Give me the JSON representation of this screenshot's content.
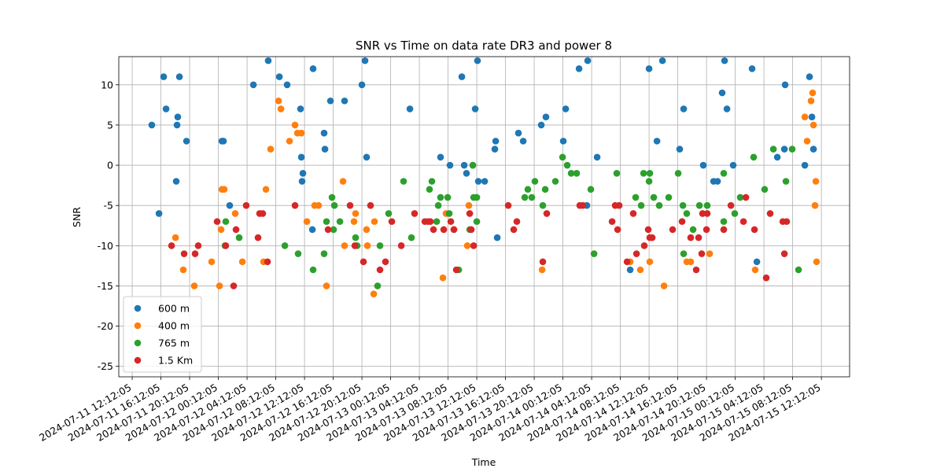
{
  "chart_data": {
    "type": "scatter",
    "title": "SNR vs Time on data rate DR3 and power 8",
    "x_label": "Time",
    "y_label": "SNR",
    "xlim": [
      "2024-07-11 10:20",
      "2024-07-15 16:08"
    ],
    "xticks": [
      "2024-07-11 12:12:05",
      "2024-07-11 16:12:05",
      "2024-07-11 20:12:05",
      "2024-07-12 00:12:05",
      "2024-07-12 04:12:05",
      "2024-07-12 08:12:05",
      "2024-07-12 12:12:05",
      "2024-07-12 16:12:05",
      "2024-07-12 20:12:05",
      "2024-07-13 00:12:05",
      "2024-07-13 04:12:05",
      "2024-07-13 08:12:05",
      "2024-07-13 12:12:05",
      "2024-07-13 16:12:05",
      "2024-07-13 20:12:05",
      "2024-07-14 00:12:05",
      "2024-07-14 04:12:05",
      "2024-07-14 08:12:05",
      "2024-07-14 12:12:05",
      "2024-07-14 16:12:05",
      "2024-07-14 20:12:05",
      "2024-07-15 00:12:05",
      "2024-07-15 04:12:05",
      "2024-07-15 08:12:05",
      "2024-07-15 12:12:05"
    ],
    "ylim": [
      -26.3,
      13.5
    ],
    "yticks": [
      -25,
      -20,
      -15,
      -10,
      -5,
      0,
      5,
      10
    ],
    "grid": true,
    "legend": "lower left",
    "series": [
      {
        "name": "600 m",
        "color": "#1f77b4",
        "x": [
          "2024-07-11 14:56",
          "2024-07-11 15:56",
          "2024-07-11 16:35",
          "2024-07-11 16:55",
          "2024-07-11 18:20",
          "2024-07-11 18:27",
          "2024-07-11 18:33",
          "2024-07-11 18:47",
          "2024-07-11 19:46",
          "2024-07-12 00:42",
          "2024-07-12 00:55",
          "2024-07-12 01:47",
          "2024-07-12 05:05",
          "2024-07-12 07:09",
          "2024-07-12 08:42",
          "2024-07-12 09:47",
          "2024-07-12 11:39",
          "2024-07-12 11:46",
          "2024-07-12 11:52",
          "2024-07-12 11:59",
          "2024-07-12 13:18",
          "2024-07-12 13:24",
          "2024-07-12 14:56",
          "2024-07-12 15:03",
          "2024-07-12 15:49",
          "2024-07-12 17:47",
          "2024-07-12 20:12",
          "2024-07-12 20:38",
          "2024-07-12 20:51",
          "2024-07-13 02:53",
          "2024-07-13 07:09",
          "2024-07-13 08:28",
          "2024-07-13 10:07",
          "2024-07-13 10:27",
          "2024-07-13 10:46",
          "2024-07-13 11:39",
          "2024-07-13 11:59",
          "2024-07-13 12:18",
          "2024-07-13 12:25",
          "2024-07-13 13:18",
          "2024-07-13 14:43",
          "2024-07-13 14:50",
          "2024-07-13 15:03",
          "2024-07-13 18:00",
          "2024-07-13 18:40",
          "2024-07-13 21:11",
          "2024-07-13 21:50",
          "2024-07-14 00:15",
          "2024-07-14 00:35",
          "2024-07-14 02:27",
          "2024-07-14 03:32",
          "2024-07-14 03:39",
          "2024-07-14 04:58",
          "2024-07-14 09:34",
          "2024-07-14 12:12",
          "2024-07-14 13:18",
          "2024-07-14 14:04",
          "2024-07-14 16:28",
          "2024-07-14 17:01",
          "2024-07-14 19:45",
          "2024-07-14 21:11",
          "2024-07-14 21:44",
          "2024-07-14 22:23",
          "2024-07-14 22:43",
          "2024-07-14 23:03",
          "2024-07-14 23:55",
          "2024-07-15 02:33",
          "2024-07-15 03:13",
          "2024-07-15 06:04",
          "2024-07-15 07:03",
          "2024-07-15 07:09",
          "2024-07-15 09:54",
          "2024-07-15 10:33",
          "2024-07-15 10:53",
          "2024-07-15 11:06"
        ],
        "values": [
          5,
          -6,
          11,
          7,
          -2,
          5,
          6,
          11,
          3,
          3,
          3,
          -5,
          10,
          13,
          11,
          10,
          7,
          1,
          -2,
          -1,
          -8,
          12,
          4,
          2,
          8,
          8,
          10,
          13,
          1,
          7,
          1,
          0,
          11,
          0,
          -1,
          0,
          7,
          13,
          -2,
          -2,
          2,
          3,
          -9,
          4,
          3,
          5,
          6,
          3,
          7,
          12,
          -5,
          13,
          1,
          -13,
          12,
          3,
          13,
          2,
          7,
          0,
          -2,
          -2,
          9,
          13,
          7,
          0,
          12,
          -12,
          1,
          2,
          10,
          0,
          11,
          6,
          2
        ]
      },
      {
        "name": "400 m",
        "color": "#ff7f0e",
        "x": [
          "2024-07-11 18:14",
          "2024-07-11 19:19",
          "2024-07-11 20:51",
          "2024-07-11 23:16",
          "2024-07-12 00:22",
          "2024-07-12 00:35",
          "2024-07-12 00:42",
          "2024-07-12 01:01",
          "2024-07-12 02:33",
          "2024-07-12 03:33",
          "2024-07-12 06:30",
          "2024-07-12 06:50",
          "2024-07-12 07:29",
          "2024-07-12 08:35",
          "2024-07-12 08:55",
          "2024-07-12 10:07",
          "2024-07-12 10:53",
          "2024-07-12 11:13",
          "2024-07-12 11:46",
          "2024-07-12 12:32",
          "2024-07-12 13:37",
          "2024-07-12 14:10",
          "2024-07-12 15:16",
          "2024-07-12 17:34",
          "2024-07-12 17:47",
          "2024-07-12 19:06",
          "2024-07-12 19:19",
          "2024-07-12 20:51",
          "2024-07-12 20:58",
          "2024-07-12 21:51",
          "2024-07-12 21:57",
          "2024-07-13 07:29",
          "2024-07-13 07:55",
          "2024-07-13 09:01",
          "2024-07-13 10:53",
          "2024-07-13 11:06",
          "2024-07-13 21:18",
          "2024-07-14 09:34",
          "2024-07-14 10:59",
          "2024-07-14 12:18",
          "2024-07-14 14:17",
          "2024-07-14 17:27",
          "2024-07-14 18:00",
          "2024-07-14 20:38",
          "2024-07-15 02:59",
          "2024-07-15 09:54",
          "2024-07-15 10:13",
          "2024-07-15 10:46",
          "2024-07-15 10:59",
          "2024-07-15 11:06",
          "2024-07-15 11:19",
          "2024-07-15 11:26",
          "2024-07-15 11:32"
        ],
        "values": [
          -9,
          -13,
          -15,
          -12,
          -15,
          -8,
          -3,
          -3,
          -6,
          -12,
          -12,
          -3,
          2,
          8,
          7,
          3,
          5,
          4,
          4,
          -7,
          -5,
          -5,
          -15,
          -2,
          -10,
          -7,
          -6,
          -8,
          -10,
          -16,
          -7,
          -14,
          -6,
          -8,
          -10,
          -5,
          -13,
          -12,
          -13,
          -12,
          -15,
          -12,
          -12,
          -11,
          -13,
          6,
          3,
          8,
          9,
          5,
          -5,
          -2,
          -12
        ]
      },
      {
        "name": "765 m",
        "color": "#2ca02c",
        "x": [
          "2024-07-12 01:08",
          "2024-07-12 01:14",
          "2024-07-12 03:06",
          "2024-07-12 09:28",
          "2024-07-12 11:19",
          "2024-07-12 13:24",
          "2024-07-12 14:56",
          "2024-07-12 15:16",
          "2024-07-12 16:02",
          "2024-07-12 16:15",
          "2024-07-12 16:22",
          "2024-07-12 17:08",
          "2024-07-12 19:19",
          "2024-07-12 19:32",
          "2024-07-12 22:23",
          "2024-07-12 22:43",
          "2024-07-12 23:55",
          "2024-07-13 02:00",
          "2024-07-13 03:06",
          "2024-07-13 05:37",
          "2024-07-13 05:57",
          "2024-07-13 06:37",
          "2024-07-13 06:50",
          "2024-07-13 07:09",
          "2024-07-13 08:09",
          "2024-07-13 08:22",
          "2024-07-13 09:41",
          "2024-07-13 11:13",
          "2024-07-13 11:39",
          "2024-07-13 11:46",
          "2024-07-13 12:12",
          "2024-07-13 12:12",
          "2024-07-13 18:53",
          "2024-07-13 19:19",
          "2024-07-13 19:52",
          "2024-07-13 20:18",
          "2024-07-13 21:24",
          "2024-07-13 21:44",
          "2024-07-13 23:09",
          "2024-07-14 00:09",
          "2024-07-14 00:48",
          "2024-07-14 01:21",
          "2024-07-14 02:07",
          "2024-07-14 04:05",
          "2024-07-14 04:32",
          "2024-07-14 07:42",
          "2024-07-14 10:20",
          "2024-07-14 11:06",
          "2024-07-14 11:26",
          "2024-07-14 12:12",
          "2024-07-14 12:18",
          "2024-07-14 12:51",
          "2024-07-14 13:37",
          "2024-07-14 14:56",
          "2024-07-14 16:15",
          "2024-07-14 16:55",
          "2024-07-14 17:01",
          "2024-07-14 17:27",
          "2024-07-14 18:20",
          "2024-07-14 19:13",
          "2024-07-14 20:18",
          "2024-07-14 22:36",
          "2024-07-14 22:36",
          "2024-07-15 00:08",
          "2024-07-15 00:54",
          "2024-07-15 02:46",
          "2024-07-15 04:18",
          "2024-07-15 05:31",
          "2024-07-15 07:16",
          "2024-07-15 08:08",
          "2024-07-15 09:01"
        ],
        "values": [
          -10,
          -7,
          -9,
          -10,
          -11,
          -13,
          -11,
          -7,
          -4,
          -8,
          -5,
          -7,
          -9,
          -10,
          -15,
          -10,
          -6,
          -2,
          -9,
          -3,
          -2,
          -7,
          -5,
          -4,
          -4,
          -6,
          -13,
          -8,
          0,
          -4,
          -4,
          -7,
          -4,
          -3,
          -4,
          -2,
          -5,
          -3,
          -2,
          1,
          0,
          -1,
          -1,
          -3,
          -11,
          -1,
          -4,
          -5,
          -1,
          -2,
          -1,
          -4,
          -5,
          -4,
          -1,
          -5,
          -11,
          -6,
          -8,
          -5,
          -5,
          -1,
          -7,
          -6,
          -4,
          1,
          -3,
          2,
          -2,
          2,
          -13
        ]
      },
      {
        "name": "1.5 Km",
        "color": "#d62728",
        "x": [
          "2024-07-11 17:41",
          "2024-07-11 19:26",
          "2024-07-11 20:58",
          "2024-07-11 21:24",
          "2024-07-12 00:02",
          "2024-07-12 01:14",
          "2024-07-12 02:20",
          "2024-07-12 02:40",
          "2024-07-12 04:05",
          "2024-07-12 05:44",
          "2024-07-12 05:57",
          "2024-07-12 06:23",
          "2024-07-12 07:03",
          "2024-07-12 10:53",
          "2024-07-12 15:29",
          "2024-07-12 18:33",
          "2024-07-12 19:13",
          "2024-07-12 20:25",
          "2024-07-12 21:24",
          "2024-07-12 22:43",
          "2024-07-12 23:29",
          "2024-07-13 00:22",
          "2024-07-13 01:41",
          "2024-07-13 03:32",
          "2024-07-13 04:58",
          "2024-07-13 05:24",
          "2024-07-13 05:44",
          "2024-07-13 06:10",
          "2024-07-13 07:36",
          "2024-07-13 08:35",
          "2024-07-13 09:01",
          "2024-07-13 09:21",
          "2024-07-13 11:13",
          "2024-07-13 11:26",
          "2024-07-13 11:46",
          "2024-07-13 16:35",
          "2024-07-13 17:21",
          "2024-07-13 17:47",
          "2024-07-13 21:24",
          "2024-07-13 21:57",
          "2024-07-14 02:33",
          "2024-07-14 02:59",
          "2024-07-14 07:03",
          "2024-07-14 07:29",
          "2024-07-14 07:49",
          "2024-07-14 08:02",
          "2024-07-14 09:08",
          "2024-07-14 10:00",
          "2024-07-14 10:27",
          "2024-07-14 11:32",
          "2024-07-14 12:05",
          "2024-07-14 12:18",
          "2024-07-14 12:38",
          "2024-07-14 15:29",
          "2024-07-14 16:48",
          "2024-07-14 18:00",
          "2024-07-14 18:46",
          "2024-07-14 19:06",
          "2024-07-14 19:32",
          "2024-07-14 19:39",
          "2024-07-14 20:12",
          "2024-07-14 20:18",
          "2024-07-14 22:36",
          "2024-07-14 23:36",
          "2024-07-15 01:21",
          "2024-07-15 01:41",
          "2024-07-15 02:53",
          "2024-07-15 04:31",
          "2024-07-15 05:04",
          "2024-07-15 06:50",
          "2024-07-15 07:03",
          "2024-07-15 07:22"
        ],
        "values": [
          -10,
          -11,
          -11,
          -10,
          -7,
          -10,
          -15,
          -8,
          -5,
          -9,
          -6,
          -6,
          -12,
          -5,
          -8,
          -5,
          -10,
          -12,
          -5,
          -13,
          -12,
          -7,
          -10,
          -6,
          -7,
          -7,
          -7,
          -8,
          -8,
          -7,
          -8,
          -13,
          -6,
          -8,
          -10,
          -5,
          -8,
          -7,
          -12,
          -6,
          -5,
          -5,
          -7,
          -5,
          -8,
          -5,
          -12,
          -6,
          -11,
          -10,
          -8,
          -9,
          -9,
          -8,
          -7,
          -9,
          -13,
          -9,
          -11,
          -6,
          -8,
          -6,
          -8,
          -5,
          -7,
          -4,
          -8,
          -14,
          -6,
          -7,
          -11,
          -7
        ]
      }
    ]
  }
}
